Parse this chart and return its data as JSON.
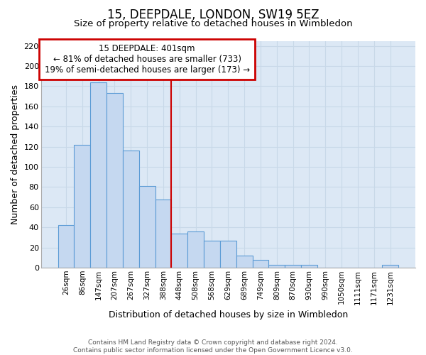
{
  "title1": "15, DEEPDALE, LONDON, SW19 5EZ",
  "title2": "Size of property relative to detached houses in Wimbledon",
  "xlabel": "Distribution of detached houses by size in Wimbledon",
  "ylabel": "Number of detached properties",
  "categories": [
    "26sqm",
    "86sqm",
    "147sqm",
    "207sqm",
    "267sqm",
    "327sqm",
    "388sqm",
    "448sqm",
    "508sqm",
    "568sqm",
    "629sqm",
    "689sqm",
    "749sqm",
    "809sqm",
    "870sqm",
    "930sqm",
    "990sqm",
    "1050sqm",
    "1111sqm",
    "1171sqm",
    "1231sqm"
  ],
  "values": [
    42,
    122,
    184,
    173,
    116,
    81,
    68,
    34,
    36,
    27,
    27,
    12,
    8,
    3,
    3,
    3,
    0,
    0,
    0,
    0,
    3
  ],
  "bar_color": "#c5d8f0",
  "bar_edge_color": "#5b9bd5",
  "bg_color": "#dce8f5",
  "plot_bg": "#ffffff",
  "grid_color": "#c8d8e8",
  "vline_x": 6.5,
  "annotation_label": "15 DEEPDALE: 401sqm",
  "annotation_line1": "← 81% of detached houses are smaller (733)",
  "annotation_line2": "19% of semi-detached houses are larger (173) →",
  "box_facecolor": "#ffffff",
  "box_edgecolor": "#cc0000",
  "vline_color": "#cc0000",
  "footer": "Contains HM Land Registry data © Crown copyright and database right 2024.\nContains public sector information licensed under the Open Government Licence v3.0.",
  "ylim": [
    0,
    225
  ],
  "yticks": [
    0,
    20,
    40,
    60,
    80,
    100,
    120,
    140,
    160,
    180,
    200,
    220
  ],
  "title1_fontsize": 12,
  "title2_fontsize": 9.5,
  "ylabel_fontsize": 9,
  "xlabel_fontsize": 9,
  "tick_fontsize": 7.5,
  "footer_fontsize": 6.5
}
